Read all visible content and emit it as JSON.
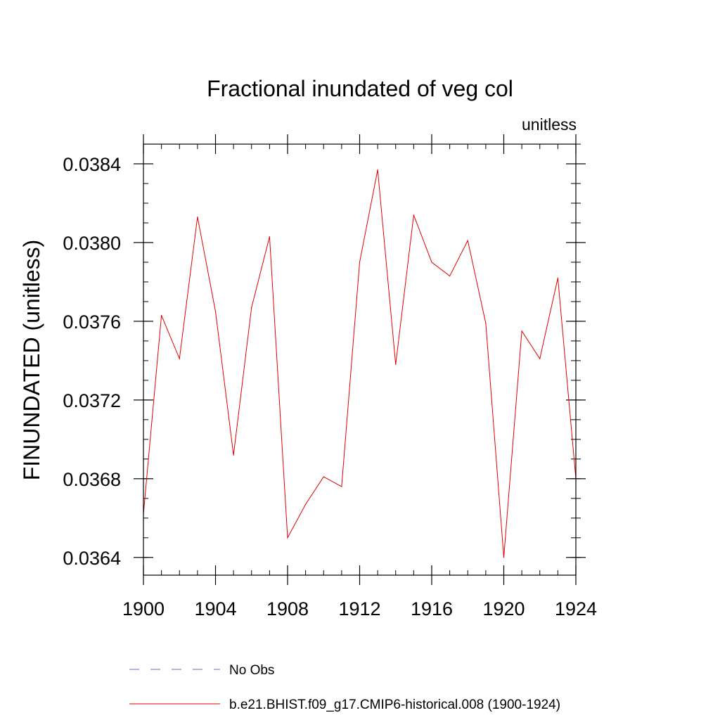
{
  "chart_data": {
    "type": "line",
    "title": "Fractional inundated of veg col",
    "units_label": "unitless",
    "ylabel": "FINUNDATED  (unitless)",
    "xlabel": "",
    "xlim": [
      1900,
      1924
    ],
    "ylim": [
      0.03631,
      0.0385
    ],
    "x_ticks": [
      1900,
      1904,
      1908,
      1912,
      1916,
      1920,
      1924
    ],
    "x_tick_labels": [
      "1900",
      "1904",
      "1908",
      "1912",
      "1916",
      "1920",
      "1924"
    ],
    "y_ticks": [
      0.0364,
      0.0368,
      0.0372,
      0.0376,
      0.038,
      0.0384
    ],
    "y_tick_labels": [
      "0.0364",
      "0.0368",
      "0.0372",
      "0.0376",
      "0.0380",
      "0.0384"
    ],
    "legend": [
      {
        "label": "No Obs",
        "color": "#6b6bc8",
        "style": "dashed"
      },
      {
        "label": "b.e21.BHIST.f09_g17.CMIP6-historical.008 (1900-1924)",
        "color": "#e00000",
        "style": "solid"
      }
    ],
    "series": [
      {
        "name": "b.e21.BHIST.f09_g17.CMIP6-historical.008 (1900-1924)",
        "color": "#e00000",
        "x": [
          1900,
          1901,
          1902,
          1903,
          1904,
          1905,
          1906,
          1907,
          1908,
          1909,
          1910,
          1911,
          1912,
          1913,
          1914,
          1915,
          1916,
          1917,
          1918,
          1919,
          1920,
          1921,
          1922,
          1923,
          1924
        ],
        "values": [
          0.03662,
          0.03763,
          0.03741,
          0.03813,
          0.03765,
          0.03692,
          0.03767,
          0.03803,
          0.0365,
          0.03667,
          0.03681,
          0.03676,
          0.0379,
          0.03837,
          0.03738,
          0.03814,
          0.0379,
          0.03783,
          0.03801,
          0.03759,
          0.0364,
          0.03755,
          0.03741,
          0.03782,
          0.0368
        ]
      }
    ]
  }
}
